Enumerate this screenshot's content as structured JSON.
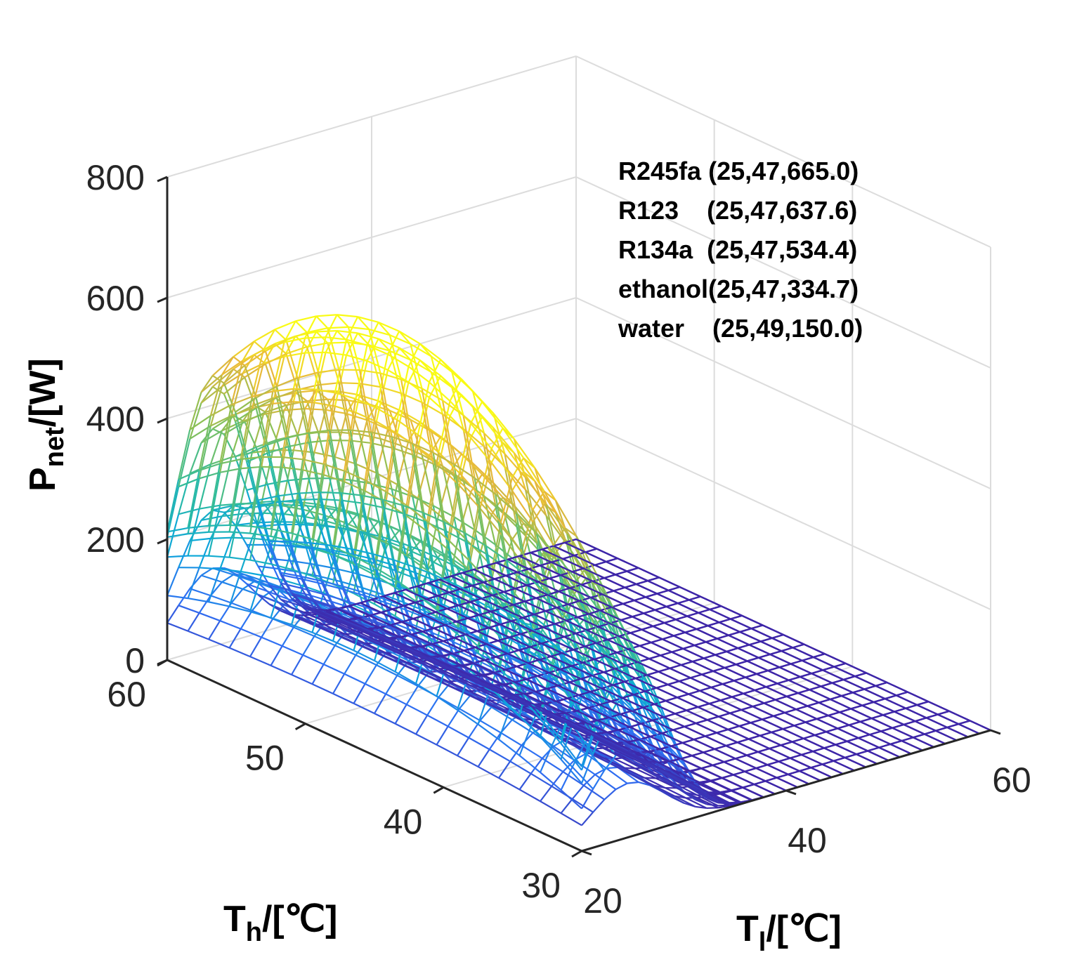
{
  "chart_data": {
    "type": "surface",
    "title": "",
    "xlabel": {
      "main": "T",
      "sub": "l",
      "unit": "/[℃]"
    },
    "ylabel": {
      "main": "T",
      "sub": "h",
      "unit": "/[℃]"
    },
    "zlabel": {
      "main": "P",
      "sub": "net",
      "unit": "/[W]"
    },
    "xlim": [
      20,
      60
    ],
    "ylim": [
      30,
      60
    ],
    "zlim": [
      0,
      800
    ],
    "x_ticks": [
      "20",
      "40",
      "60"
    ],
    "y_ticks": [
      "30",
      "40",
      "50",
      "60"
    ],
    "z_ticks": [
      "0",
      "200",
      "400",
      "600",
      "800"
    ],
    "grid": true,
    "colormap": [
      "#3e26a8",
      "#2f6ff3",
      "#0ba7da",
      "#2ebc9e",
      "#8ac056",
      "#e8b73a",
      "#f9fb15"
    ],
    "annotation_lines": [
      {
        "text": "R245fa (25,47,665.0)"
      },
      {
        "text": "R123    (25,47,637.6)"
      },
      {
        "text": "R134a  (25,47,534.4)"
      },
      {
        "text": "ethanol(25,47,334.7)"
      },
      {
        "text": "water    (25,49,150.0)"
      }
    ],
    "series": [
      {
        "name": "R245fa",
        "peak": [
          25,
          47,
          665.0
        ]
      },
      {
        "name": "R123",
        "peak": [
          25,
          47,
          637.6
        ]
      },
      {
        "name": "R134a",
        "peak": [
          25,
          47,
          534.4
        ]
      },
      {
        "name": "ethanol",
        "peak": [
          25,
          47,
          334.7
        ]
      },
      {
        "name": "water",
        "peak": [
          25,
          49,
          150.0
        ]
      }
    ]
  }
}
